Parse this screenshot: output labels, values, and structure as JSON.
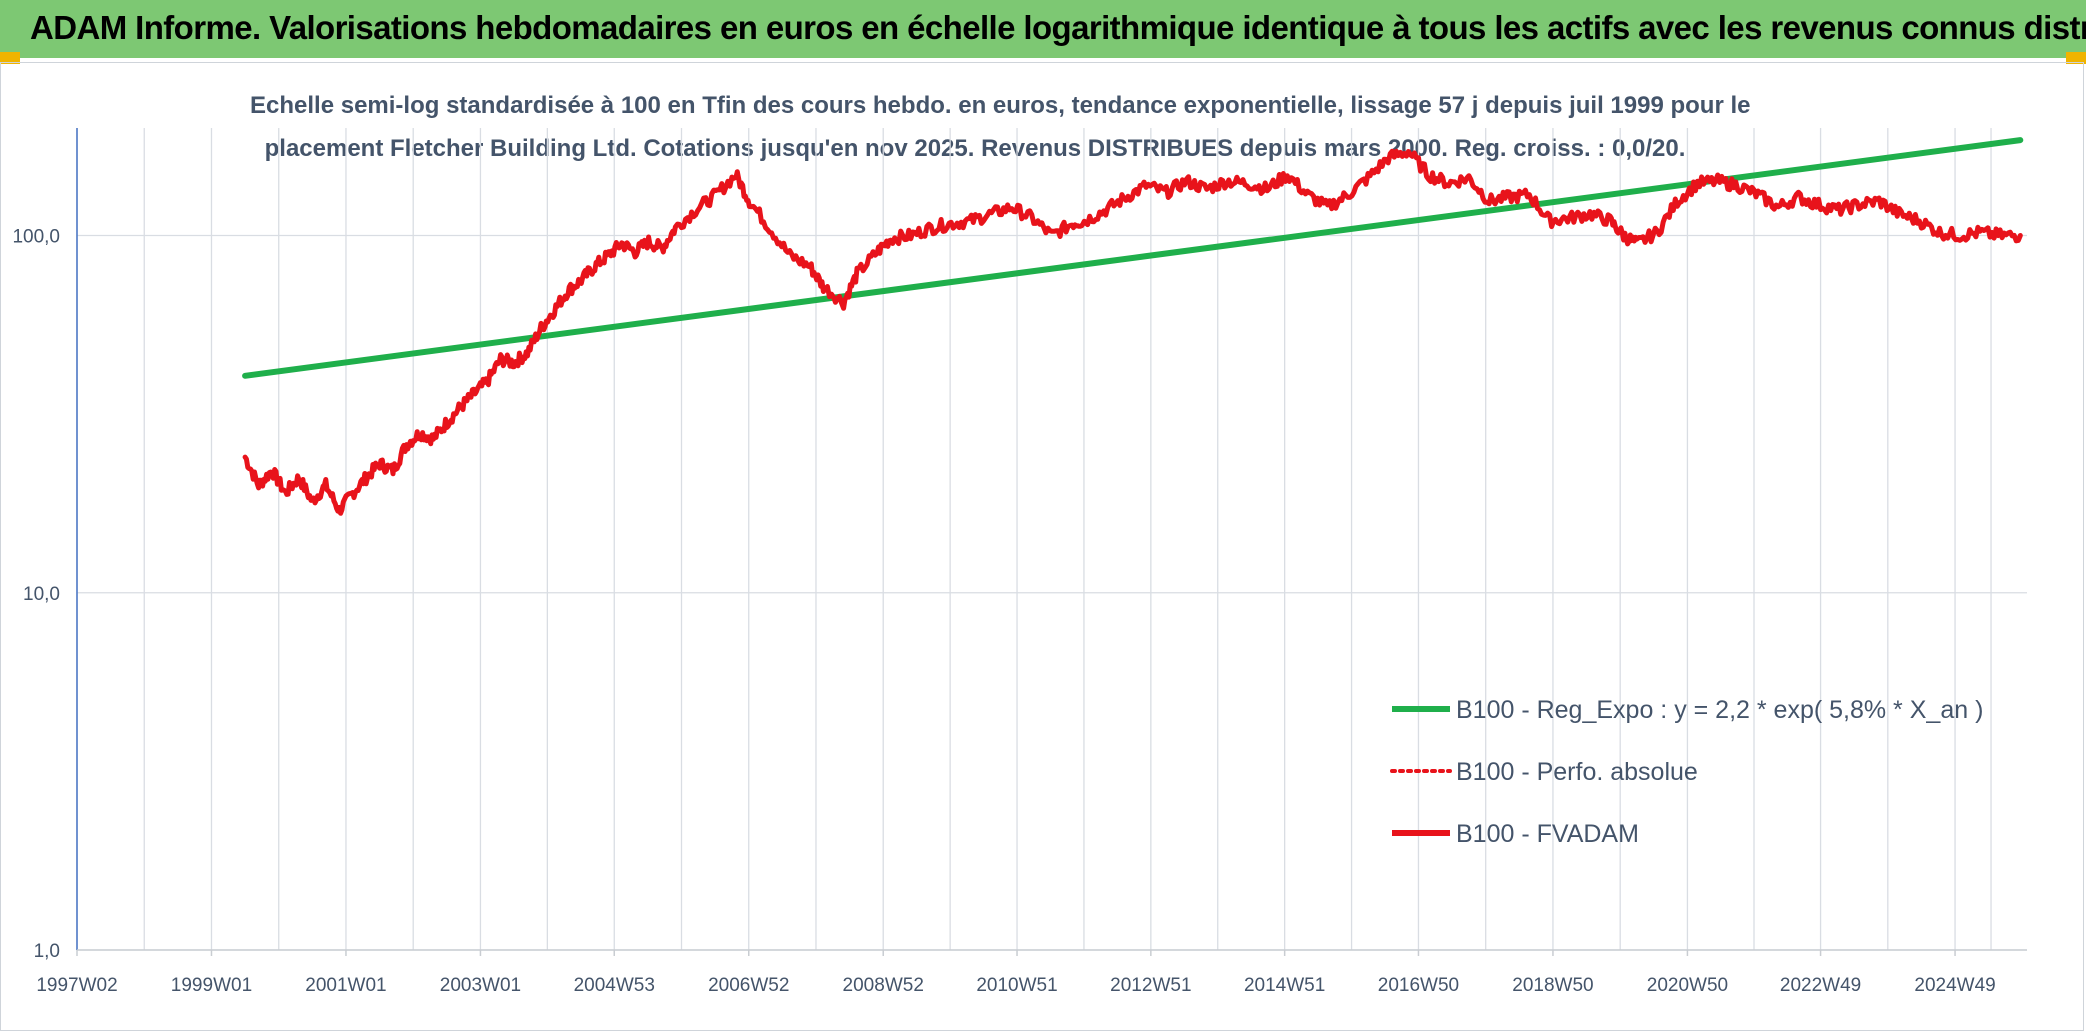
{
  "header": {
    "title": "ADAM Informe. Valorisations hebdomadaires en euros en échelle logarithmique identique à tous les actifs avec les revenus connus distribués"
  },
  "colors": {
    "header_bg": "#7dc873",
    "trend": "#1faf4b",
    "perf": "#e8131b",
    "axis_text": "#44546a",
    "grid": "#d9dde3"
  },
  "chart_data": {
    "type": "line",
    "title_lines": [
      "Echelle semi-log standardisée à 100 en Tfin des cours hebdo. en euros, tendance exponentielle, lissage 57 j depuis juil 1999 pour le",
      "placement Fletcher Building Ltd. Cotations jusqu'en nov 2025. Revenus DISTRIBUES depuis mars 2000. Reg. croiss. : 0,0/20."
    ],
    "y_scale": "log",
    "ylim": [
      1,
      200
    ],
    "y_ticks": [
      1,
      10,
      100
    ],
    "y_tick_labels": [
      "1,0",
      "10,0",
      "100,0"
    ],
    "xlim": [
      1997.0,
      2026.0
    ],
    "x_ticks": [
      1997.0,
      1999.0,
      2001.0,
      2003.0,
      2004.99,
      2006.99,
      2008.99,
      2010.98,
      2012.97,
      2014.96,
      2016.95,
      2018.95,
      2020.95,
      2022.93,
      2024.93
    ],
    "x_tick_labels": [
      "1997W02",
      "1999W01",
      "2001W01",
      "2003W01",
      "2004W53",
      "2006W52",
      "2008W52",
      "2010W51",
      "2012W51",
      "2014W51",
      "2016W50",
      "2018W50",
      "2020W50",
      "2022W49",
      "2024W49"
    ],
    "grid": "vertical",
    "legend_position": "bottom-right",
    "series": [
      {
        "name": "B100 - Reg_Expo : y = 2,2 * exp( 5,8% *  X_an )",
        "style": "solid",
        "color": "#1faf4b",
        "x": [
          1999.5,
          2025.9
        ],
        "y": [
          40.5,
          185
        ]
      },
      {
        "name": "B100 - Perfo. absolue",
        "style": "dotted",
        "color": "#e8131b",
        "x": [],
        "y": []
      },
      {
        "name": "B100 - FVADAM",
        "style": "solid",
        "color": "#e8131b",
        "x": [
          1999.5,
          1999.7,
          1999.9,
          2000.1,
          2000.3,
          2000.5,
          2000.7,
          2000.9,
          2001.1,
          2001.3,
          2001.5,
          2001.7,
          2001.9,
          2002.1,
          2002.3,
          2002.5,
          2002.7,
          2002.9,
          2003.1,
          2003.3,
          2003.5,
          2003.7,
          2003.9,
          2004.1,
          2004.3,
          2004.5,
          2004.7,
          2004.9,
          2005.1,
          2005.3,
          2005.5,
          2005.7,
          2005.9,
          2006.2,
          2006.5,
          2006.8,
          2007.0,
          2007.3,
          2007.6,
          2007.9,
          2008.1,
          2008.4,
          2008.6,
          2008.9,
          2009.1,
          2009.4,
          2009.7,
          2010.0,
          2010.3,
          2010.6,
          2010.9,
          2011.2,
          2011.5,
          2011.8,
          2012.0,
          2012.3,
          2012.6,
          2012.9,
          2013.2,
          2013.5,
          2013.8,
          2014.1,
          2014.4,
          2014.7,
          2015.0,
          2015.3,
          2015.6,
          2015.9,
          2016.2,
          2016.5,
          2016.8,
          2017.1,
          2017.4,
          2017.7,
          2018.0,
          2018.3,
          2018.6,
          2018.9,
          2019.2,
          2019.5,
          2019.8,
          2020.0,
          2020.2,
          2020.5,
          2020.8,
          2021.1,
          2021.4,
          2021.7,
          2022.0,
          2022.3,
          2022.6,
          2022.9,
          2023.2,
          2023.5,
          2023.8,
          2024.1,
          2024.4,
          2024.7,
          2025.0,
          2025.3,
          2025.6,
          2025.9
        ],
        "y": [
          24,
          20,
          22,
          19,
          21,
          18,
          20,
          17,
          19,
          21,
          23,
          22,
          26,
          28,
          27,
          30,
          33,
          36,
          39,
          45,
          44,
          47,
          55,
          62,
          70,
          75,
          82,
          88,
          95,
          90,
          96,
          92,
          105,
          118,
          130,
          148,
          125,
          105,
          88,
          82,
          72,
          65,
          78,
          90,
          98,
          100,
          105,
          108,
          110,
          115,
          120,
          112,
          100,
          108,
          110,
          118,
          128,
          138,
          132,
          142,
          135,
          142,
          140,
          135,
          148,
          130,
          120,
          130,
          145,
          165,
          172,
          148,
          140,
          145,
          125,
          128,
          130,
          110,
          112,
          115,
          110,
          100,
          95,
          102,
          125,
          140,
          142,
          138,
          130,
          120,
          128,
          122,
          118,
          122,
          125,
          115,
          110,
          102,
          100,
          102,
          100,
          100
        ]
      }
    ]
  }
}
